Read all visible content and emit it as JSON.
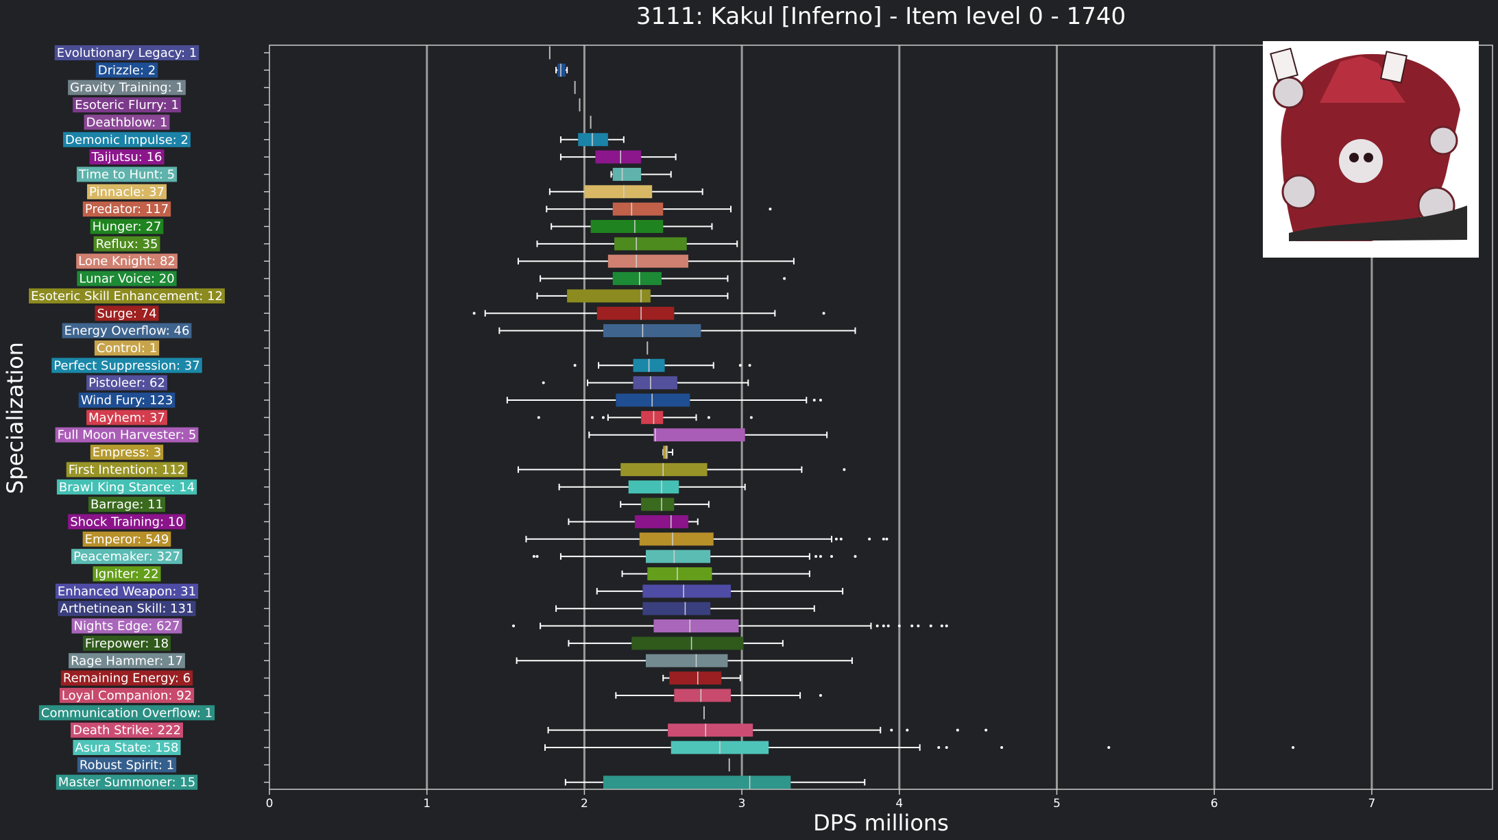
{
  "chart_data": {
    "type": "box",
    "title": "3111: Kakul [Inferno] - Item level 0 - 1740",
    "xlabel": "DPS millions",
    "ylabel": "Specialization",
    "xlim": [
      0,
      7.75
    ],
    "xticks": [
      0,
      1,
      2,
      3,
      4,
      5,
      6,
      7
    ],
    "grid": "vertical",
    "categories": [
      "Evolutionary Legacy: 1",
      "Drizzle: 2",
      "Gravity Training: 1",
      "Esoteric Flurry: 1",
      "Deathblow: 1",
      "Demonic Impulse: 2",
      "Taijutsu: 16",
      "Time to Hunt: 5",
      "Pinnacle: 37",
      "Predator: 117",
      "Hunger: 27",
      "Reflux: 35",
      "Lone Knight: 82",
      "Lunar Voice: 20",
      "Esoteric Skill Enhancement: 12",
      "Surge: 74",
      "Energy Overflow: 46",
      "Control: 1",
      "Perfect Suppression: 37",
      "Pistoleer: 62",
      "Wind Fury: 123",
      "Mayhem: 37",
      "Full Moon Harvester: 5",
      "Empress: 3",
      "First Intention: 112",
      "Brawl King Stance: 14",
      "Barrage: 11",
      "Shock Training: 10",
      "Emperor: 549",
      "Peacemaker: 327",
      "Igniter: 22",
      "Enhanced Weapon: 31",
      "Arthetinean Skill: 131",
      "Nights Edge: 627",
      "Firepower: 18",
      "Rage Hammer: 17",
      "Remaining Energy: 6",
      "Loyal Companion: 92",
      "Communication Overflow: 1",
      "Death Strike: 222",
      "Asura State: 158",
      "Robust Spirit: 1",
      "Master Summoner: 15"
    ],
    "colors": [
      "#4a4d94",
      "#1e4f94",
      "#71828a",
      "#7c3a8a",
      "#8a4795",
      "#1b83a8",
      "#8c168c",
      "#5fb3ac",
      "#d8b865",
      "#c1614a",
      "#1f841f",
      "#4d8b1f",
      "#d08070",
      "#1d8a35",
      "#8c8b1f",
      "#9e2020",
      "#3f658f",
      "#c7a44c",
      "#1b88a9",
      "#53509c",
      "#1f4e92",
      "#d33d4d",
      "#aa5db7",
      "#b59a2f",
      "#989427",
      "#44c1b4",
      "#3a6a1e",
      "#8b148b",
      "#b8902a",
      "#5bbcb4",
      "#649e1a",
      "#4e4ca5",
      "#3a3f7d",
      "#a966ba",
      "#2f5a1c",
      "#738a90",
      "#9a1f22",
      "#c84a6c",
      "#2b8f83",
      "#cc4d74",
      "#4ec4b9",
      "#355f8c",
      "#2e968a"
    ],
    "boxes": [
      {
        "whislo": 1.78,
        "q1": 1.78,
        "med": 1.78,
        "q3": 1.78,
        "whishi": 1.78,
        "fliers": []
      },
      {
        "whislo": 1.82,
        "q1": 1.83,
        "med": 1.85,
        "q3": 1.88,
        "whishi": 1.89,
        "fliers": []
      },
      {
        "whislo": 1.94,
        "q1": 1.94,
        "med": 1.94,
        "q3": 1.94,
        "whishi": 1.94,
        "fliers": []
      },
      {
        "whislo": 1.97,
        "q1": 1.97,
        "med": 1.97,
        "q3": 1.97,
        "whishi": 1.97,
        "fliers": []
      },
      {
        "whislo": 2.04,
        "q1": 2.04,
        "med": 2.04,
        "q3": 2.04,
        "whishi": 2.04,
        "fliers": []
      },
      {
        "whislo": 1.85,
        "q1": 1.96,
        "med": 2.05,
        "q3": 2.15,
        "whishi": 2.25,
        "fliers": []
      },
      {
        "whislo": 1.85,
        "q1": 2.07,
        "med": 2.23,
        "q3": 2.36,
        "whishi": 2.58,
        "fliers": []
      },
      {
        "whislo": 2.17,
        "q1": 2.18,
        "med": 2.24,
        "q3": 2.36,
        "whishi": 2.55,
        "fliers": []
      },
      {
        "whislo": 1.78,
        "q1": 2.0,
        "med": 2.25,
        "q3": 2.43,
        "whishi": 2.75,
        "fliers": []
      },
      {
        "whislo": 1.76,
        "q1": 2.18,
        "med": 2.3,
        "q3": 2.5,
        "whishi": 2.93,
        "fliers": [
          3.18
        ]
      },
      {
        "whislo": 1.79,
        "q1": 2.04,
        "med": 2.32,
        "q3": 2.5,
        "whishi": 2.81,
        "fliers": []
      },
      {
        "whislo": 1.7,
        "q1": 2.19,
        "med": 2.33,
        "q3": 2.65,
        "whishi": 2.97,
        "fliers": []
      },
      {
        "whislo": 1.58,
        "q1": 2.15,
        "med": 2.33,
        "q3": 2.66,
        "whishi": 3.33,
        "fliers": []
      },
      {
        "whislo": 1.72,
        "q1": 2.18,
        "med": 2.35,
        "q3": 2.49,
        "whishi": 2.91,
        "fliers": [
          3.27
        ]
      },
      {
        "whislo": 1.7,
        "q1": 1.89,
        "med": 2.36,
        "q3": 2.42,
        "whishi": 2.91,
        "fliers": []
      },
      {
        "whislo": 1.37,
        "q1": 2.08,
        "med": 2.36,
        "q3": 2.57,
        "whishi": 3.21,
        "fliers": [
          1.3,
          3.52
        ]
      },
      {
        "whislo": 1.46,
        "q1": 2.12,
        "med": 2.37,
        "q3": 2.74,
        "whishi": 3.72,
        "fliers": []
      },
      {
        "whislo": 2.4,
        "q1": 2.4,
        "med": 2.4,
        "q3": 2.4,
        "whishi": 2.4,
        "fliers": []
      },
      {
        "whislo": 2.09,
        "q1": 2.31,
        "med": 2.41,
        "q3": 2.51,
        "whishi": 2.82,
        "fliers": [
          1.94,
          2.99,
          3.05
        ]
      },
      {
        "whislo": 2.02,
        "q1": 2.31,
        "med": 2.42,
        "q3": 2.59,
        "whishi": 3.04,
        "fliers": [
          1.74
        ]
      },
      {
        "whislo": 1.51,
        "q1": 2.2,
        "med": 2.43,
        "q3": 2.67,
        "whishi": 3.41,
        "fliers": [
          3.46,
          3.5
        ]
      },
      {
        "whislo": 2.15,
        "q1": 2.36,
        "med": 2.44,
        "q3": 2.5,
        "whishi": 2.71,
        "fliers": [
          1.71,
          2.05,
          2.12,
          2.79,
          3.06
        ]
      },
      {
        "whislo": 2.03,
        "q1": 2.44,
        "med": 2.45,
        "q3": 3.02,
        "whishi": 3.54,
        "fliers": []
      },
      {
        "whislo": 2.5,
        "q1": 2.5,
        "med": 2.52,
        "q3": 2.53,
        "whishi": 2.56,
        "fliers": []
      },
      {
        "whislo": 1.58,
        "q1": 2.23,
        "med": 2.5,
        "q3": 2.78,
        "whishi": 3.38,
        "fliers": [
          3.65
        ]
      },
      {
        "whislo": 1.84,
        "q1": 2.28,
        "med": 2.49,
        "q3": 2.6,
        "whishi": 3.02,
        "fliers": []
      },
      {
        "whislo": 2.23,
        "q1": 2.36,
        "med": 2.49,
        "q3": 2.57,
        "whishi": 2.79,
        "fliers": []
      },
      {
        "whislo": 1.9,
        "q1": 2.32,
        "med": 2.55,
        "q3": 2.66,
        "whishi": 2.72,
        "fliers": []
      },
      {
        "whislo": 1.63,
        "q1": 2.35,
        "med": 2.56,
        "q3": 2.82,
        "whishi": 3.57,
        "fliers": [
          3.6,
          3.63,
          3.81,
          3.9,
          3.92
        ]
      },
      {
        "whislo": 1.85,
        "q1": 2.39,
        "med": 2.57,
        "q3": 2.8,
        "whishi": 3.43,
        "fliers": [
          1.68,
          1.7,
          3.47,
          3.5,
          3.57,
          3.72
        ]
      },
      {
        "whislo": 2.24,
        "q1": 2.4,
        "med": 2.59,
        "q3": 2.81,
        "whishi": 3.43,
        "fliers": []
      },
      {
        "whislo": 2.08,
        "q1": 2.37,
        "med": 2.63,
        "q3": 2.93,
        "whishi": 3.64,
        "fliers": []
      },
      {
        "whislo": 1.82,
        "q1": 2.37,
        "med": 2.64,
        "q3": 2.8,
        "whishi": 3.46,
        "fliers": []
      },
      {
        "whislo": 1.72,
        "q1": 2.44,
        "med": 2.67,
        "q3": 2.98,
        "whishi": 3.82,
        "fliers": [
          1.55,
          3.86,
          3.9,
          3.93,
          4.0,
          4.08,
          4.12,
          4.2,
          4.27,
          4.3
        ]
      },
      {
        "whislo": 1.9,
        "q1": 2.3,
        "med": 2.68,
        "q3": 3.01,
        "whishi": 3.26,
        "fliers": []
      },
      {
        "whislo": 1.57,
        "q1": 2.39,
        "med": 2.71,
        "q3": 2.91,
        "whishi": 3.7,
        "fliers": []
      },
      {
        "whislo": 2.5,
        "q1": 2.54,
        "med": 2.72,
        "q3": 2.87,
        "whishi": 2.99,
        "fliers": []
      },
      {
        "whislo": 2.2,
        "q1": 2.57,
        "med": 2.74,
        "q3": 2.93,
        "whishi": 3.37,
        "fliers": [
          3.5
        ]
      },
      {
        "whislo": 2.76,
        "q1": 2.76,
        "med": 2.76,
        "q3": 2.76,
        "whishi": 2.76,
        "fliers": []
      },
      {
        "whislo": 1.77,
        "q1": 2.53,
        "med": 2.77,
        "q3": 3.07,
        "whishi": 3.88,
        "fliers": [
          3.95,
          4.05,
          4.37,
          4.55
        ]
      },
      {
        "whislo": 1.75,
        "q1": 2.55,
        "med": 2.86,
        "q3": 3.17,
        "whishi": 4.13,
        "fliers": [
          4.25,
          4.3,
          4.65,
          5.33,
          6.5
        ]
      },
      {
        "whislo": 2.92,
        "q1": 2.92,
        "med": 2.92,
        "q3": 2.92,
        "whishi": 2.92,
        "fliers": []
      },
      {
        "whislo": 1.88,
        "q1": 2.12,
        "med": 3.05,
        "q3": 3.31,
        "whishi": 3.78,
        "fliers": []
      }
    ]
  }
}
